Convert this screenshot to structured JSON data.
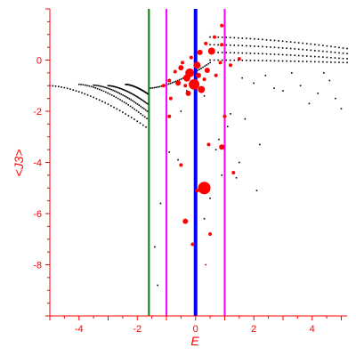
{
  "chart_data": {
    "type": "scatter",
    "xlabel": "E",
    "ylabel": "<J3>",
    "xlim": [
      -5,
      5.2
    ],
    "ylim": [
      -10,
      2
    ],
    "x_ticks": [
      -4,
      -2,
      0,
      2,
      4
    ],
    "y_ticks": [
      0,
      -2,
      -4,
      -6,
      -8
    ],
    "grid": false,
    "axis_color": "#ff0000",
    "vertical_lines": [
      {
        "x": -1.6,
        "color": "#008000"
      },
      {
        "x": -1.0,
        "color": "#ff00ff"
      },
      {
        "x": 0.0,
        "color": "#0000ff"
      },
      {
        "x": 1.0,
        "color": "#ff00ff"
      }
    ],
    "black_points": {
      "color": "#000000",
      "branches": [
        {
          "x_start": -5.0,
          "y_start": -1.0,
          "x_end": -1.6,
          "y_end": -2.7
        },
        {
          "x_start": -4.0,
          "y_start": -0.95,
          "x_end": -1.6,
          "y_end": -2.35
        },
        {
          "x_start": -3.5,
          "y_start": -0.98,
          "x_end": -1.6,
          "y_end": -2.05
        },
        {
          "x_start": -3.0,
          "y_start": -1.0,
          "x_end": -1.6,
          "y_end": -1.75
        },
        {
          "x_start": -2.4,
          "y_start": -0.95,
          "x_end": -1.6,
          "y_end": -1.35
        },
        {
          "x_start": -1.6,
          "y_start": -1.1,
          "x_end": 0.5,
          "y_end": -0.1
        },
        {
          "x_start": 0.5,
          "y_start": 0.9,
          "x_end": 5.2,
          "y_end": 0.45
        },
        {
          "x_start": 0.5,
          "y_start": 0.6,
          "x_end": 5.2,
          "y_end": 0.25
        },
        {
          "x_start": 0.5,
          "y_start": 0.3,
          "x_end": 5.2,
          "y_end": 0.05
        },
        {
          "x_start": 0.5,
          "y_start": 0.0,
          "x_end": 5.2,
          "y_end": -0.1
        }
      ],
      "scattered": [
        [
          1.6,
          -0.7
        ],
        [
          2.0,
          -0.9
        ],
        [
          2.4,
          -0.6
        ],
        [
          3.0,
          -1.2
        ],
        [
          3.6,
          -1.0
        ],
        [
          4.2,
          -1.3
        ],
        [
          4.6,
          -0.8
        ],
        [
          5.0,
          -1.9
        ],
        [
          4.8,
          -1.5
        ],
        [
          3.9,
          -1.7
        ],
        [
          2.7,
          -1.1
        ],
        [
          1.2,
          -2.1
        ],
        [
          1.1,
          -2.6
        ],
        [
          1.7,
          -2.3
        ],
        [
          2.2,
          -3.3
        ],
        [
          1.5,
          -4.0
        ],
        [
          1.4,
          -4.6
        ],
        [
          2.1,
          -5.1
        ],
        [
          -0.6,
          -3.9
        ],
        [
          -0.9,
          -3.6
        ],
        [
          -1.0,
          -4.2
        ],
        [
          -1.2,
          -5.6
        ],
        [
          -1.4,
          -7.3
        ],
        [
          -1.3,
          -8.8
        ],
        [
          -1.0,
          -8.7
        ],
        [
          0.9,
          -4.5
        ],
        [
          0.7,
          -3.5
        ],
        [
          0.5,
          -5.4
        ],
        [
          0.3,
          -6.2
        ],
        [
          0.8,
          -3.1
        ],
        [
          1.0,
          -5.9
        ],
        [
          -0.5,
          -2.0
        ],
        [
          0.3,
          -1.4
        ],
        [
          -0.3,
          -1.2
        ],
        [
          3.3,
          -0.5
        ],
        [
          4.4,
          -0.5
        ]
      ]
    },
    "red_points": {
      "color": "#ff0000",
      "points": [
        {
          "x": -0.2,
          "y": -0.5,
          "s": 5
        },
        {
          "x": -0.05,
          "y": -0.95,
          "s": 6
        },
        {
          "x": 0.05,
          "y": -0.2,
          "s": 4
        },
        {
          "x": -0.3,
          "y": -0.7,
          "s": 4
        },
        {
          "x": 0.15,
          "y": 0.3,
          "s": 3
        },
        {
          "x": -0.5,
          "y": -0.3,
          "s": 3
        },
        {
          "x": -0.6,
          "y": -0.9,
          "s": 3
        },
        {
          "x": 0.4,
          "y": -0.4,
          "s": 3
        },
        {
          "x": 0.55,
          "y": 0.35,
          "s": 4
        },
        {
          "x": 0.2,
          "y": -1.15,
          "s": 4
        },
        {
          "x": -0.25,
          "y": -1.3,
          "s": 3
        },
        {
          "x": -1.1,
          "y": -1.0,
          "s": 2
        },
        {
          "x": -0.85,
          "y": -1.5,
          "s": 2
        },
        {
          "x": -0.9,
          "y": -0.8,
          "s": 2
        },
        {
          "x": 0.7,
          "y": -0.6,
          "s": 2
        },
        {
          "x": 0.85,
          "y": -0.1,
          "s": 2
        },
        {
          "x": 0.9,
          "y": 0.6,
          "s": 2
        },
        {
          "x": 1.2,
          "y": -0.2,
          "s": 2
        },
        {
          "x": 1.5,
          "y": 0.05,
          "s": 2
        },
        {
          "x": 0.65,
          "y": 0.9,
          "s": 2
        },
        {
          "x": -0.45,
          "y": -0.1,
          "s": 2
        },
        {
          "x": -0.7,
          "y": -0.45,
          "s": 2
        },
        {
          "x": 0.3,
          "y": -0.75,
          "s": 2
        },
        {
          "x": -0.15,
          "y": 0.1,
          "s": 2
        },
        {
          "x": 0.35,
          "y": 0.65,
          "s": 2
        },
        {
          "x": 0.9,
          "y": 1.35,
          "s": 2
        },
        {
          "x": 0.1,
          "y": -0.6,
          "s": 3
        },
        {
          "x": -0.35,
          "y": -1.0,
          "s": 2
        },
        {
          "x": 0.3,
          "y": -5.0,
          "s": 7
        },
        {
          "x": 0.9,
          "y": -3.4,
          "s": 3
        },
        {
          "x": 1.0,
          "y": -2.2,
          "s": 2
        },
        {
          "x": -0.35,
          "y": -6.3,
          "s": 3
        },
        {
          "x": 0.05,
          "y": -5.1,
          "s": 2
        },
        {
          "x": -0.5,
          "y": -4.1,
          "s": 2
        },
        {
          "x": 0.5,
          "y": -6.8,
          "s": 2
        },
        {
          "x": 0.45,
          "y": -3.3,
          "s": 2
        },
        {
          "x": -0.1,
          "y": -7.2,
          "s": 2
        },
        {
          "x": 1.3,
          "y": -4.4,
          "s": 2
        },
        {
          "x": 0.35,
          "y": -8.0,
          "s": 1
        },
        {
          "x": -0.9,
          "y": -2.2,
          "s": 2
        }
      ]
    }
  }
}
